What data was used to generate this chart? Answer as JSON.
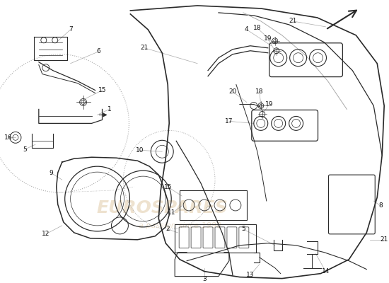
{
  "bg_color": "#ffffff",
  "line_color": "#2a2a2a",
  "light_line_color": "#aaaaaa",
  "watermark_color": "#c8a060",
  "label_color": "#111111",
  "label_fs": 6.5,
  "watermark_fs": 18,
  "watermark_sub_fs": 8
}
